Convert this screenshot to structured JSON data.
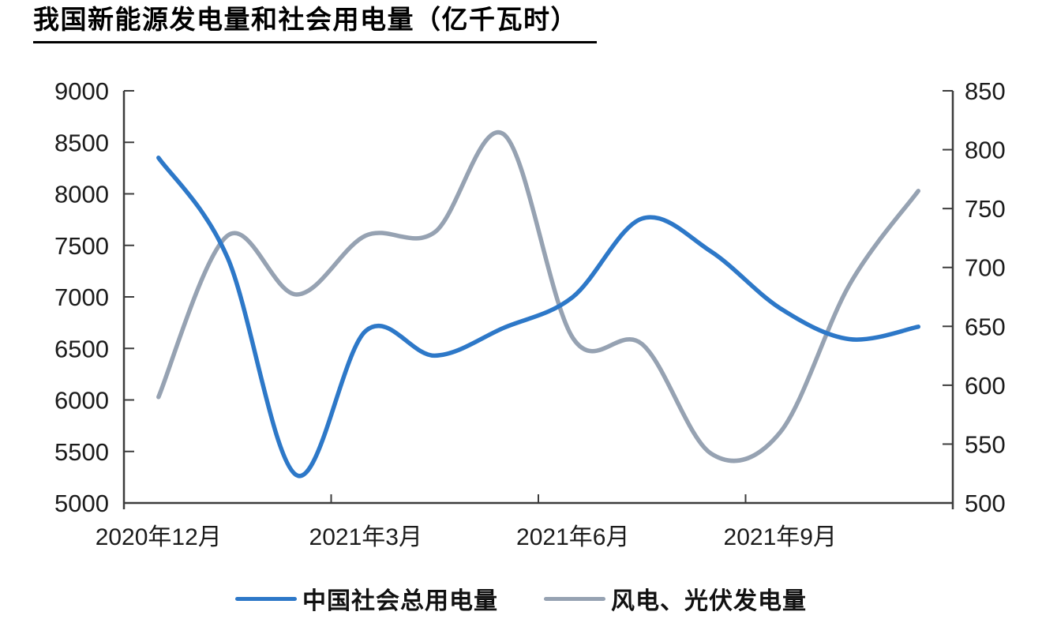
{
  "title": "我国新能源发电量和社会用电量（亿千瓦时）",
  "chart_data": {
    "type": "line",
    "title": "我国新能源发电量和社会用电量（亿千瓦时）",
    "unit": "亿千瓦时",
    "grid": false,
    "legend_position": "bottom",
    "x_categories": [
      "2020-12",
      "2021-01",
      "2021-02",
      "2021-03",
      "2021-04",
      "2021-05",
      "2021-06",
      "2021-07",
      "2021-08",
      "2021-09",
      "2021-10",
      "2021-11"
    ],
    "x_tick_labels": [
      "2020年12月",
      "2021年3月",
      "2021年6月",
      "2021年9月"
    ],
    "left_axis": {
      "min": 5000,
      "max": 9000,
      "step": 500,
      "tick_labels": [
        "9000",
        "8500",
        "8000",
        "7500",
        "7000",
        "6500",
        "6000",
        "5500",
        "5000"
      ]
    },
    "right_axis": {
      "min": 500,
      "max": 850,
      "step": 50,
      "tick_labels": [
        "850",
        "800",
        "750",
        "700",
        "650",
        "600",
        "550",
        "500"
      ]
    },
    "series": [
      {
        "name": "中国社会总用电量",
        "axis": "left",
        "color": "#2D78C8",
        "values": [
          8350,
          7380,
          5270,
          6670,
          6430,
          6700,
          7000,
          7760,
          7440,
          6890,
          6590,
          6710
        ]
      },
      {
        "name": "风电、光伏发电量",
        "axis": "right",
        "color": "#96A2B2",
        "values": [
          590,
          727,
          677,
          727,
          730,
          813,
          640,
          635,
          542,
          560,
          685,
          765
        ]
      }
    ]
  },
  "colors": {
    "axis_line": "#3c3c3c",
    "tick_text": "#1b1b1b",
    "title_text": "#000000",
    "background": "#ffffff"
  }
}
